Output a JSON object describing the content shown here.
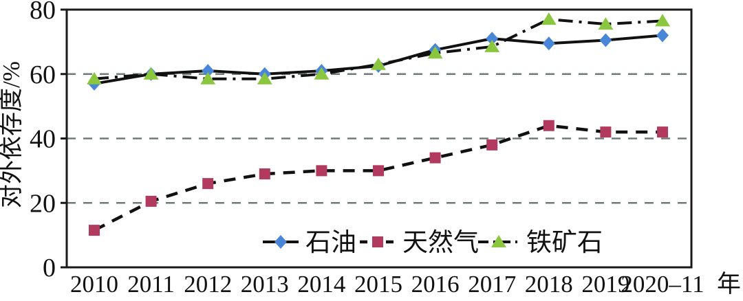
{
  "chart_data": {
    "type": "line",
    "title": "",
    "ylabel": "对外依存度/%",
    "x_unit_label": "年",
    "x_tick_labels": [
      "2010",
      "2011",
      "2012",
      "2013",
      "2014",
      "2015",
      "2016",
      "2017",
      "2018",
      "2019",
      "2020–11"
    ],
    "ylim": [
      0,
      80
    ],
    "y_ticks": [
      0,
      20,
      40,
      60,
      80
    ],
    "grid_y_values": [
      20,
      40,
      60
    ],
    "grid": "horizontal dashed lines at 20/40/60",
    "legend_position": "inside-bottom",
    "axis_color": "#1a1a1a",
    "grid_color": "#6f7b7b",
    "line_color": "#111111",
    "series": [
      {
        "name": "石油",
        "marker": "diamond",
        "marker_color": "#4a86d8",
        "line_color": "#111111",
        "line_style": "solid",
        "values": [
          57,
          60,
          61,
          60,
          61,
          62.5,
          67.5,
          71,
          69.5,
          70.5,
          72
        ]
      },
      {
        "name": "天然气",
        "marker": "square",
        "marker_color": "#b23a5e",
        "line_color": "#111111",
        "line_style": "dashed",
        "values": [
          11.5,
          20.5,
          26,
          29,
          30,
          30,
          34,
          38,
          44,
          42,
          42
        ]
      },
      {
        "name": "铁矿石",
        "marker": "triangle",
        "marker_color": "#8bc63f",
        "line_color": "#111111",
        "line_style": "dash-dot",
        "values": [
          58.5,
          60,
          58.5,
          58.5,
          60,
          63,
          66.5,
          68.5,
          77,
          75.5,
          76.5
        ]
      }
    ]
  }
}
